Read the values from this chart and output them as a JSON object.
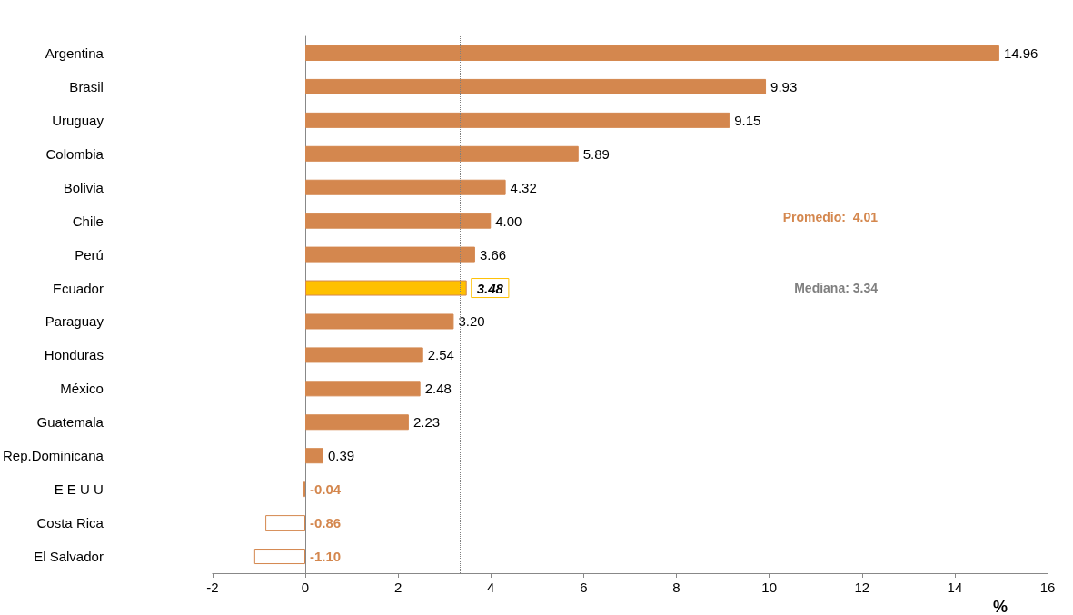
{
  "chart_data": {
    "type": "bar",
    "orientation": "horizontal",
    "categories": [
      "Argentina",
      "Brasil",
      "Uruguay",
      "Colombia",
      "Bolivia",
      "Chile",
      "Perú",
      "Ecuador",
      "Paraguay",
      "Honduras",
      "México",
      "Guatemala",
      "Rep.Dominicana",
      "E E U U",
      "Costa Rica",
      "El Salvador"
    ],
    "values": [
      14.96,
      9.93,
      9.15,
      5.89,
      4.32,
      4.0,
      3.66,
      3.48,
      3.2,
      2.54,
      2.48,
      2.23,
      0.39,
      -0.04,
      -0.86,
      -1.1
    ],
    "value_labels": [
      "14.96",
      "9.93",
      "9.15",
      "5.89",
      "4.32",
      "4.00",
      "3.66",
      "3.48",
      "3.20",
      "2.54",
      "2.48",
      "2.23",
      "0.39",
      "-0.04",
      "-0.86",
      "-1.10"
    ],
    "color": "#d4874e",
    "colors": [
      "#d4874e",
      "#d4874e",
      "#d4874e",
      "#d4874e",
      "#d4874e",
      "#d4874e",
      "#d4874e",
      "#ffc000",
      "#d4874e",
      "#d4874e",
      "#d4874e",
      "#d4874e",
      "#d4874e",
      "#ffffff",
      "#ffffff",
      "#ffffff"
    ],
    "xlabel": "%",
    "xlim": [
      -2,
      16
    ],
    "xticks": [
      -2,
      0,
      2,
      4,
      6,
      8,
      10,
      12,
      14,
      16
    ],
    "ref_lines": [
      {
        "axis": "x",
        "value": 4.01,
        "label": "Promedio:  4.01",
        "color": "#d4874e",
        "line_style": "dotted"
      },
      {
        "axis": "x",
        "value": 3.34,
        "label": "Mediana: 3.34",
        "color": "#7f7f7f",
        "line_style": "dotted"
      }
    ],
    "grid": false
  }
}
